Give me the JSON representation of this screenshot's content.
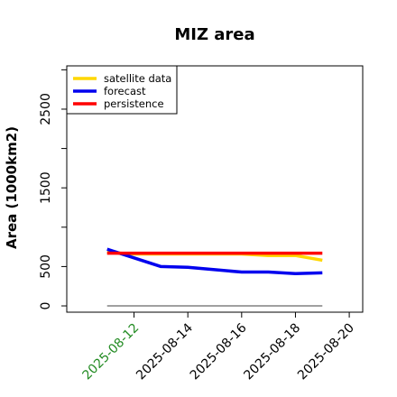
{
  "chart_data": {
    "type": "line",
    "title": "MIZ area",
    "ylabel": "Area (1000km2)",
    "xlabel": "",
    "x_ticks": [
      "2025-08-12",
      "2025-08-14",
      "2025-08-16",
      "2025-08-18",
      "2025-08-20"
    ],
    "x_tick_colors": [
      "#228b22",
      "#000000",
      "#000000",
      "#000000",
      "#000000"
    ],
    "y_ticks": [
      0,
      500,
      1500,
      2500
    ],
    "xlim": [
      "2025-08-09-12h",
      "2025-08-20-12h"
    ],
    "ylim": [
      -80,
      3050
    ],
    "grid": false,
    "legend_position": "top-left",
    "x": [
      "2025-08-11",
      "2025-08-12",
      "2025-08-13",
      "2025-08-14",
      "2025-08-15",
      "2025-08-16",
      "2025-08-17",
      "2025-08-18",
      "2025-08-19"
    ],
    "series": [
      {
        "name": "satellite data",
        "color": "#ffd700",
        "values": [
          680,
          660,
          660,
          660,
          660,
          660,
          640,
          640,
          580
        ]
      },
      {
        "name": "forecast",
        "color": "#0000ee",
        "values": [
          720,
          610,
          500,
          490,
          460,
          430,
          430,
          410,
          420
        ]
      },
      {
        "name": "persistence",
        "color": "#ff0000",
        "values": [
          670,
          670,
          670,
          670,
          670,
          670,
          670,
          670,
          670
        ]
      }
    ],
    "baseline": {
      "color": "#808080",
      "value": 0
    }
  }
}
